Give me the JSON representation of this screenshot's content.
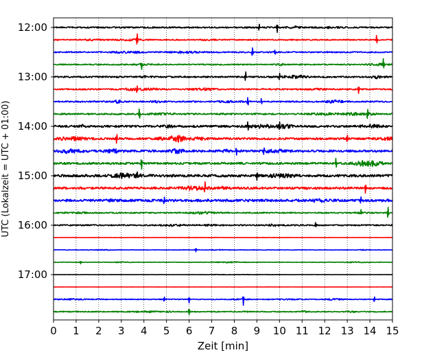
{
  "chart_data": {
    "type": "line",
    "title": "",
    "xlabel": "Zeit  [min]",
    "ylabel": "UTC (Lokalzeit = UTC + 01:00)",
    "xlim": [
      0,
      15
    ],
    "x_ticks": [
      "0",
      "1",
      "2",
      "3",
      "4",
      "5",
      "6",
      "7",
      "8",
      "9",
      "10",
      "11",
      "12",
      "13",
      "14",
      "15"
    ],
    "y_ticks": [
      "12:00",
      "13:00",
      "14:00",
      "15:00",
      "16:00",
      "17:00"
    ],
    "grid": "vertical dotted",
    "colors": [
      "#000000",
      "#ff0000",
      "#0000ff",
      "#008000"
    ],
    "series": [
      {
        "time": "12:00",
        "color": "#000000",
        "level": 1.0,
        "spikes": [
          [
            9.1,
            5
          ],
          [
            9.9,
            8
          ]
        ]
      },
      {
        "time": "12:15",
        "color": "#ff0000",
        "level": 0.8,
        "spikes": [
          [
            3.7,
            8
          ],
          [
            14.3,
            7
          ]
        ]
      },
      {
        "time": "12:30",
        "color": "#0000ff",
        "level": 0.9,
        "spikes": [
          [
            8.8,
            7
          ],
          [
            9.8,
            4
          ]
        ]
      },
      {
        "time": "12:45",
        "color": "#008000",
        "level": 0.8,
        "spikes": [
          [
            3.9,
            6
          ],
          [
            14.6,
            8
          ]
        ]
      },
      {
        "time": "13:00",
        "color": "#000000",
        "level": 1.1,
        "spikes": [
          [
            8.5,
            7
          ],
          [
            10.0,
            5
          ]
        ]
      },
      {
        "time": "13:15",
        "color": "#ff0000",
        "level": 1.0,
        "spikes": [
          [
            3.7,
            7
          ],
          [
            13.5,
            5
          ]
        ]
      },
      {
        "time": "13:30",
        "color": "#0000ff",
        "level": 1.0,
        "spikes": [
          [
            8.6,
            7
          ],
          [
            9.2,
            5
          ]
        ]
      },
      {
        "time": "13:45",
        "color": "#008000",
        "level": 1.1,
        "spikes": [
          [
            3.8,
            7
          ],
          [
            13.9,
            7
          ]
        ]
      },
      {
        "time": "14:00",
        "color": "#000000",
        "level": 1.5,
        "spikes": [
          [
            8.6,
            6
          ],
          [
            10.0,
            5
          ]
        ]
      },
      {
        "time": "14:15",
        "color": "#ff0000",
        "level": 1.5,
        "spikes": [
          [
            2.8,
            7
          ],
          [
            13.0,
            6
          ]
        ]
      },
      {
        "time": "14:30",
        "color": "#0000ff",
        "level": 1.6,
        "spikes": [
          [
            8.1,
            6
          ],
          [
            9.3,
            6
          ]
        ]
      },
      {
        "time": "14:45",
        "color": "#008000",
        "level": 1.5,
        "spikes": [
          [
            3.9,
            8
          ],
          [
            12.5,
            7
          ]
        ]
      },
      {
        "time": "15:00",
        "color": "#000000",
        "level": 1.8,
        "spikes": [
          [
            3.7,
            7
          ],
          [
            9.0,
            8
          ]
        ]
      },
      {
        "time": "15:15",
        "color": "#ff0000",
        "level": 1.6,
        "spikes": [
          [
            6.7,
            7
          ],
          [
            13.8,
            6
          ]
        ]
      },
      {
        "time": "15:30",
        "color": "#0000ff",
        "level": 1.8,
        "spikes": [
          [
            4.9,
            5
          ],
          [
            13.6,
            7
          ]
        ]
      },
      {
        "time": "15:45",
        "color": "#008000",
        "level": 0.9,
        "spikes": [
          [
            13.6,
            4
          ],
          [
            14.8,
            8
          ]
        ]
      },
      {
        "time": "16:00",
        "color": "#000000",
        "level": 0.9,
        "spikes": [
          [
            11.6,
            4
          ]
        ]
      },
      {
        "time": "16:15",
        "color": "#ff0000",
        "level": 0.2,
        "spikes": []
      },
      {
        "time": "16:30",
        "color": "#0000ff",
        "level": 0.35,
        "spikes": [
          [
            6.3,
            3
          ]
        ]
      },
      {
        "time": "16:45",
        "color": "#008000",
        "level": 0.35,
        "spikes": [
          [
            1.2,
            2
          ]
        ]
      },
      {
        "time": "17:00",
        "color": "#000000",
        "level": 0.15,
        "spikes": []
      },
      {
        "time": "17:15",
        "color": "#ff0000",
        "level": 0.1,
        "spikes": []
      },
      {
        "time": "17:30",
        "color": "#0000ff",
        "level": 0.6,
        "spikes": [
          [
            4.9,
            4
          ],
          [
            6.0,
            5
          ],
          [
            8.4,
            8
          ],
          [
            14.2,
            4
          ]
        ]
      },
      {
        "time": "17:45",
        "color": "#008000",
        "level": 0.7,
        "spikes": [
          [
            6.0,
            5
          ]
        ]
      }
    ]
  }
}
